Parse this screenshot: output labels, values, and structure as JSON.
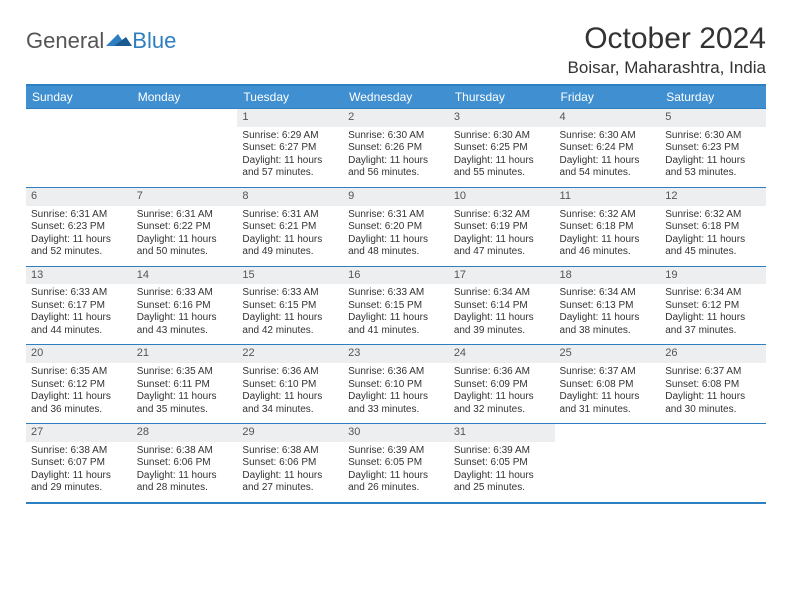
{
  "brand": {
    "text1": "General",
    "text2": "Blue",
    "tri_color": "#2d7fc1"
  },
  "title": "October 2024",
  "location": "Boisar, Maharashtra, India",
  "colors": {
    "header_bg": "#3f8fd1",
    "border": "#2d7fc1",
    "daynum_bg": "#eceeef"
  },
  "weekdays": [
    "Sunday",
    "Monday",
    "Tuesday",
    "Wednesday",
    "Thursday",
    "Friday",
    "Saturday"
  ],
  "grid": [
    [
      null,
      null,
      {
        "n": "1",
        "sr": "6:29 AM",
        "ss": "6:27 PM",
        "dl": "11 hours and 57 minutes."
      },
      {
        "n": "2",
        "sr": "6:30 AM",
        "ss": "6:26 PM",
        "dl": "11 hours and 56 minutes."
      },
      {
        "n": "3",
        "sr": "6:30 AM",
        "ss": "6:25 PM",
        "dl": "11 hours and 55 minutes."
      },
      {
        "n": "4",
        "sr": "6:30 AM",
        "ss": "6:24 PM",
        "dl": "11 hours and 54 minutes."
      },
      {
        "n": "5",
        "sr": "6:30 AM",
        "ss": "6:23 PM",
        "dl": "11 hours and 53 minutes."
      }
    ],
    [
      {
        "n": "6",
        "sr": "6:31 AM",
        "ss": "6:23 PM",
        "dl": "11 hours and 52 minutes."
      },
      {
        "n": "7",
        "sr": "6:31 AM",
        "ss": "6:22 PM",
        "dl": "11 hours and 50 minutes."
      },
      {
        "n": "8",
        "sr": "6:31 AM",
        "ss": "6:21 PM",
        "dl": "11 hours and 49 minutes."
      },
      {
        "n": "9",
        "sr": "6:31 AM",
        "ss": "6:20 PM",
        "dl": "11 hours and 48 minutes."
      },
      {
        "n": "10",
        "sr": "6:32 AM",
        "ss": "6:19 PM",
        "dl": "11 hours and 47 minutes."
      },
      {
        "n": "11",
        "sr": "6:32 AM",
        "ss": "6:18 PM",
        "dl": "11 hours and 46 minutes."
      },
      {
        "n": "12",
        "sr": "6:32 AM",
        "ss": "6:18 PM",
        "dl": "11 hours and 45 minutes."
      }
    ],
    [
      {
        "n": "13",
        "sr": "6:33 AM",
        "ss": "6:17 PM",
        "dl": "11 hours and 44 minutes."
      },
      {
        "n": "14",
        "sr": "6:33 AM",
        "ss": "6:16 PM",
        "dl": "11 hours and 43 minutes."
      },
      {
        "n": "15",
        "sr": "6:33 AM",
        "ss": "6:15 PM",
        "dl": "11 hours and 42 minutes."
      },
      {
        "n": "16",
        "sr": "6:33 AM",
        "ss": "6:15 PM",
        "dl": "11 hours and 41 minutes."
      },
      {
        "n": "17",
        "sr": "6:34 AM",
        "ss": "6:14 PM",
        "dl": "11 hours and 39 minutes."
      },
      {
        "n": "18",
        "sr": "6:34 AM",
        "ss": "6:13 PM",
        "dl": "11 hours and 38 minutes."
      },
      {
        "n": "19",
        "sr": "6:34 AM",
        "ss": "6:12 PM",
        "dl": "11 hours and 37 minutes."
      }
    ],
    [
      {
        "n": "20",
        "sr": "6:35 AM",
        "ss": "6:12 PM",
        "dl": "11 hours and 36 minutes."
      },
      {
        "n": "21",
        "sr": "6:35 AM",
        "ss": "6:11 PM",
        "dl": "11 hours and 35 minutes."
      },
      {
        "n": "22",
        "sr": "6:36 AM",
        "ss": "6:10 PM",
        "dl": "11 hours and 34 minutes."
      },
      {
        "n": "23",
        "sr": "6:36 AM",
        "ss": "6:10 PM",
        "dl": "11 hours and 33 minutes."
      },
      {
        "n": "24",
        "sr": "6:36 AM",
        "ss": "6:09 PM",
        "dl": "11 hours and 32 minutes."
      },
      {
        "n": "25",
        "sr": "6:37 AM",
        "ss": "6:08 PM",
        "dl": "11 hours and 31 minutes."
      },
      {
        "n": "26",
        "sr": "6:37 AM",
        "ss": "6:08 PM",
        "dl": "11 hours and 30 minutes."
      }
    ],
    [
      {
        "n": "27",
        "sr": "6:38 AM",
        "ss": "6:07 PM",
        "dl": "11 hours and 29 minutes."
      },
      {
        "n": "28",
        "sr": "6:38 AM",
        "ss": "6:06 PM",
        "dl": "11 hours and 28 minutes."
      },
      {
        "n": "29",
        "sr": "6:38 AM",
        "ss": "6:06 PM",
        "dl": "11 hours and 27 minutes."
      },
      {
        "n": "30",
        "sr": "6:39 AM",
        "ss": "6:05 PM",
        "dl": "11 hours and 26 minutes."
      },
      {
        "n": "31",
        "sr": "6:39 AM",
        "ss": "6:05 PM",
        "dl": "11 hours and 25 minutes."
      },
      null,
      null
    ]
  ],
  "labels": {
    "sunrise": "Sunrise:",
    "sunset": "Sunset:",
    "daylight": "Daylight:"
  }
}
